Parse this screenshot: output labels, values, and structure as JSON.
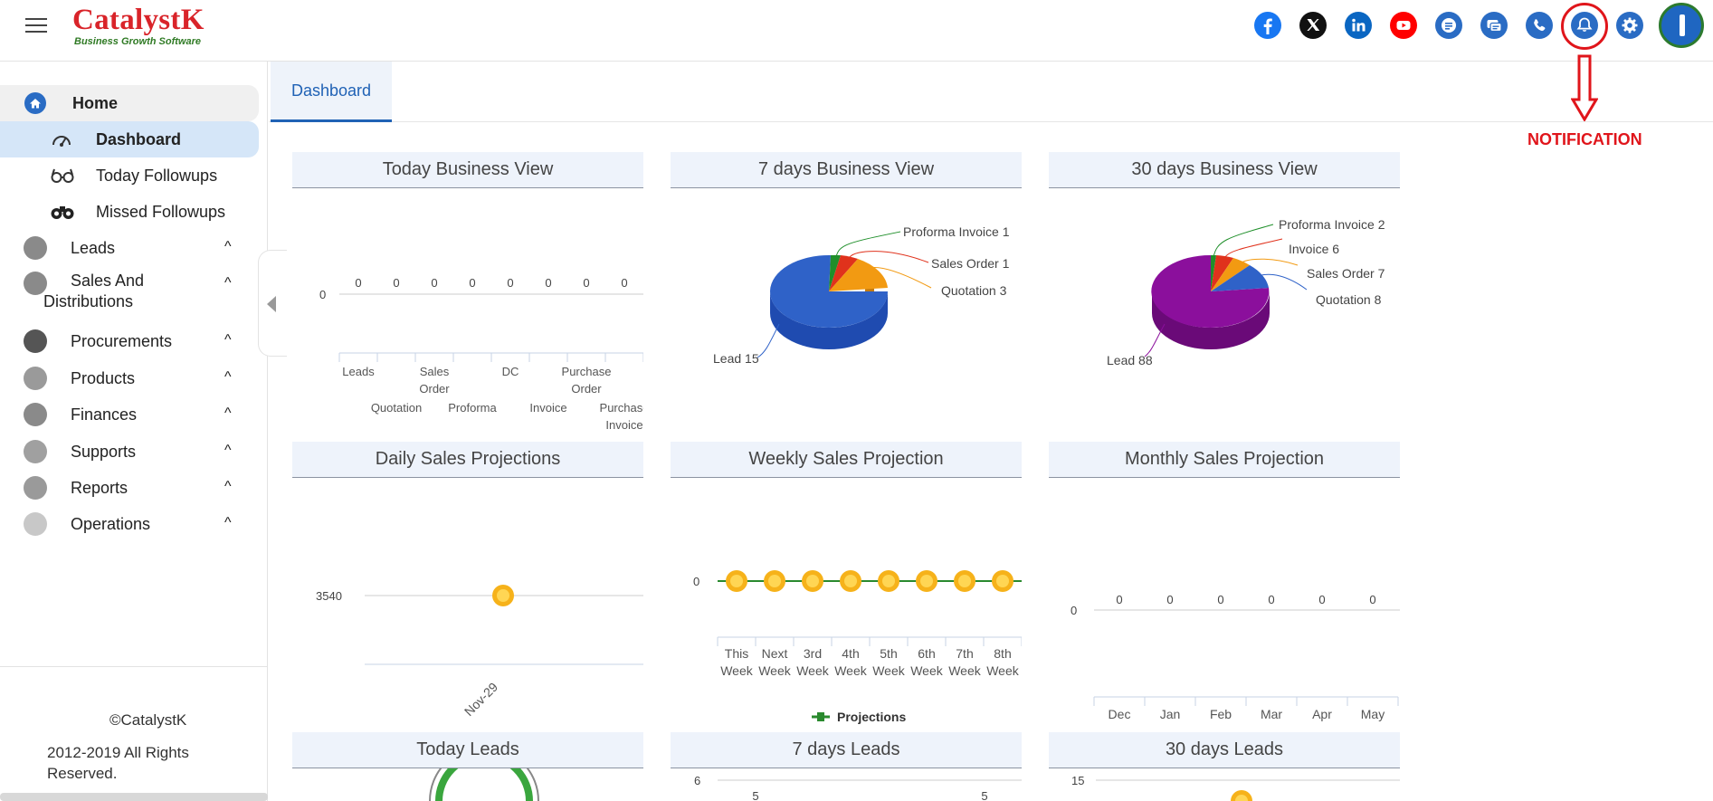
{
  "app": {
    "logo_title": "CatalystK",
    "logo_subtitle": "Business Growth Software"
  },
  "header": {
    "icons": [
      "facebook-icon",
      "x-twitter-icon",
      "linkedin-icon",
      "youtube-icon",
      "web-chat-icon",
      "message-icon",
      "phone-icon",
      "notification-bell-icon",
      "settings-gear-icon"
    ],
    "annotation_label": "NOTIFICATION"
  },
  "sidebar": {
    "home": "Home",
    "sub_items": [
      {
        "label": "Dashboard",
        "icon": "speedometer-icon"
      },
      {
        "label": "Today Followups",
        "icon": "glasses-icon"
      },
      {
        "label": "Missed Followups",
        "icon": "binoculars-icon"
      }
    ],
    "menu": [
      {
        "label": "Leads",
        "icon": "people-icon"
      },
      {
        "label": "Sales And",
        "label2": "Distributions",
        "icon": "bar-chart-icon"
      },
      {
        "label": "Procurements",
        "icon": "register-icon"
      },
      {
        "label": "Products",
        "icon": "cart-icon"
      },
      {
        "label": "Finances",
        "icon": "bank-icon"
      },
      {
        "label": "Supports",
        "icon": "support-icon"
      },
      {
        "label": "Reports",
        "icon": "report-icon"
      },
      {
        "label": "Operations",
        "icon": "operations-icon"
      }
    ],
    "caret": "^",
    "copyright": "©CatalystK",
    "rights_line1": "2012-2019 All Rights",
    "rights_line2": "Reserved."
  },
  "tabs": {
    "dashboard": "Dashboard"
  },
  "cards": {
    "today_business": "Today Business View",
    "seven_business": "7 days Business View",
    "thirty_business": "30 days Business View",
    "daily_sales": "Daily Sales Projections",
    "weekly_sales": "Weekly Sales Projection",
    "monthly_sales": "Monthly Sales Projection",
    "today_leads": "Today Leads",
    "seven_leads": "7 days Leads",
    "thirty_leads": "30 days Leads"
  },
  "chart_data": [
    {
      "type": "line",
      "title": "Today Business View",
      "categories": [
        "Leads",
        "Quotation",
        "Sales Order",
        "Proforma",
        "DC",
        "Invoice",
        "Purchase Order",
        "Purchase Invoice"
      ],
      "values": [
        0,
        0,
        0,
        0,
        0,
        0,
        0,
        0
      ],
      "y_tick": "0"
    },
    {
      "type": "pie",
      "title": "7 days Business View",
      "slices": [
        {
          "label": "Lead",
          "value": 15,
          "color": "#2f62c8"
        },
        {
          "label": "Proforma Invoice",
          "value": 1,
          "color": "#1f8f2a"
        },
        {
          "label": "Sales Order",
          "value": 1,
          "color": "#e0321c"
        },
        {
          "label": "Quotation",
          "value": 3,
          "color": "#f29a12"
        }
      ]
    },
    {
      "type": "pie",
      "title": "30 days Business View",
      "slices": [
        {
          "label": "Lead",
          "value": 88,
          "color": "#8b0f9c"
        },
        {
          "label": "Proforma Invoice",
          "value": 2,
          "color": "#1f8f2a"
        },
        {
          "label": "Invoice",
          "value": 6,
          "color": "#e0321c"
        },
        {
          "label": "Sales Order",
          "value": 7,
          "color": "#f29a12"
        },
        {
          "label": "Quotation",
          "value": 8,
          "color": "#2f62c8"
        }
      ]
    },
    {
      "type": "line",
      "title": "Daily Sales Projections",
      "categories": [
        "Nov-29"
      ],
      "values": [
        3540
      ],
      "y_tick": "3540"
    },
    {
      "type": "line",
      "title": "Weekly Sales Projection",
      "categories": [
        "This Week",
        "Next Week",
        "3rd Week",
        "4th Week",
        "5th Week",
        "6th Week",
        "7th Week",
        "8th Week"
      ],
      "values": [
        0,
        0,
        0,
        0,
        0,
        0,
        0,
        0
      ],
      "y_tick": "0",
      "series": [
        {
          "name": "Projections",
          "color": "#2a8a2e"
        }
      ]
    },
    {
      "type": "line",
      "title": "Monthly Sales Projection",
      "categories": [
        "Dec",
        "Jan",
        "Feb",
        "Mar",
        "Apr",
        "May"
      ],
      "values": [
        0,
        0,
        0,
        0,
        0,
        0
      ],
      "y_tick": "0"
    },
    {
      "type": "line",
      "title": "7 days Leads",
      "y_tick": "6",
      "visible_values": [
        5,
        5
      ]
    },
    {
      "type": "line",
      "title": "30 days Leads",
      "y_tick": "15"
    }
  ]
}
